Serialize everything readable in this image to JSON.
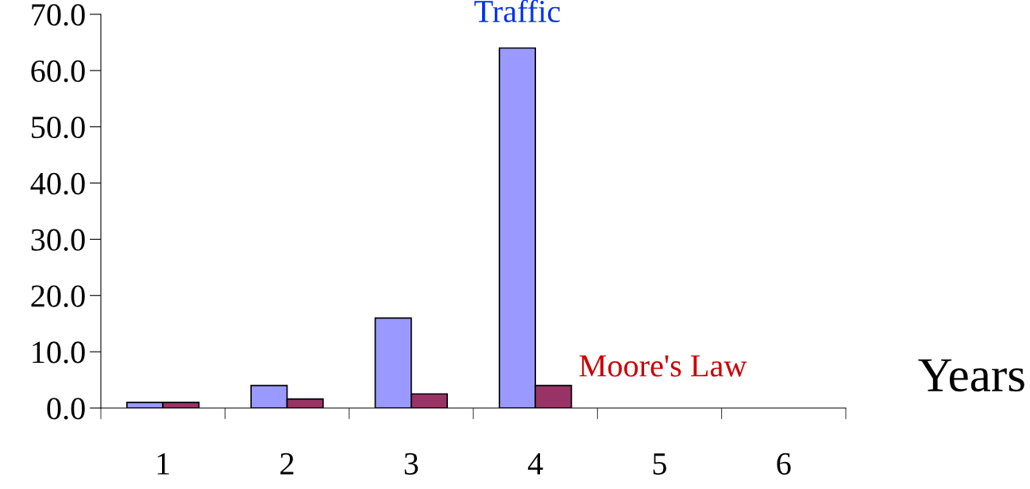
{
  "chart_data": {
    "type": "bar",
    "xlabel": "Years",
    "categories": [
      "1",
      "2",
      "3",
      "4",
      "5",
      "6"
    ],
    "series": [
      {
        "name": "Traffic",
        "color": "#9999ff",
        "values": [
          1,
          4,
          16,
          64,
          null,
          null
        ]
      },
      {
        "name": "Moore's Law",
        "color": "#993366",
        "values": [
          1,
          1.6,
          2.5,
          4,
          null,
          null
        ]
      }
    ],
    "ylim": [
      0,
      70
    ],
    "yticks": [
      {
        "value": 0,
        "label": "0.0"
      },
      {
        "value": 10,
        "label": "10.0"
      },
      {
        "value": 20,
        "label": "20.0"
      },
      {
        "value": 30,
        "label": "30.0"
      },
      {
        "value": 40,
        "label": "40.0"
      },
      {
        "value": 50,
        "label": "50.0"
      },
      {
        "value": 60,
        "label": "60.0"
      },
      {
        "value": 70,
        "label": "70.0"
      }
    ],
    "grid": false,
    "legend": false
  }
}
